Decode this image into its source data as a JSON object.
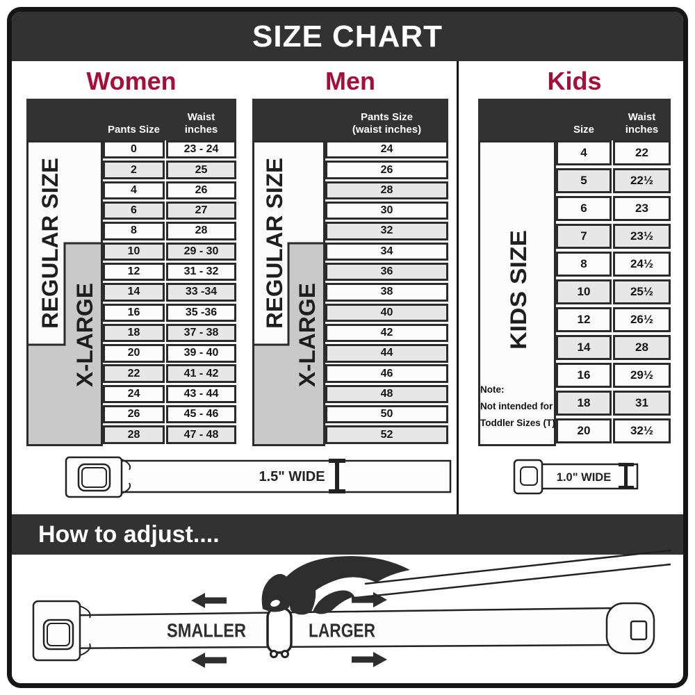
{
  "title": "SIZE CHART",
  "colors": {
    "accent": "#A60D38",
    "dark_band": "#323232",
    "label_gray": "#C9C9C9",
    "row_alt": "#E7E7E7",
    "border": "#2B2B2B"
  },
  "women": {
    "heading": "Women",
    "col_pants": "Pants Size",
    "col_waist": "Waist\ninches",
    "regular_label": "REGULAR SIZE",
    "xlarge_label": "X-LARGE",
    "rows": [
      [
        "0",
        "23 - 24"
      ],
      [
        "2",
        "25"
      ],
      [
        "4",
        "26"
      ],
      [
        "6",
        "27"
      ],
      [
        "8",
        "28"
      ],
      [
        "10",
        "29 - 30"
      ],
      [
        "12",
        "31 - 32"
      ],
      [
        "14",
        "33 -34"
      ],
      [
        "16",
        "35 -36"
      ],
      [
        "18",
        "37 - 38"
      ],
      [
        "20",
        "39 - 40"
      ],
      [
        "22",
        "41 - 42"
      ],
      [
        "24",
        "43 - 44"
      ],
      [
        "26",
        "45 - 46"
      ],
      [
        "28",
        "47 - 48"
      ]
    ]
  },
  "men": {
    "heading": "Men",
    "col_pants": "Pants Size\n(waist inches)",
    "regular_label": "REGULAR SIZE",
    "xlarge_label": "X-LARGE",
    "sizes": [
      "24",
      "26",
      "28",
      "30",
      "32",
      "34",
      "36",
      "38",
      "40",
      "42",
      "44",
      "46",
      "48",
      "50",
      "52"
    ]
  },
  "kids": {
    "heading": "Kids",
    "col_size": "Size",
    "col_waist": "Waist\ninches",
    "side_label": "KIDS SIZE",
    "note": [
      "Note:",
      "Not intended for",
      "Toddler Sizes (T)"
    ],
    "rows": [
      [
        "4",
        "22"
      ],
      [
        "5",
        "22½"
      ],
      [
        "6",
        "23"
      ],
      [
        "7",
        "23½"
      ],
      [
        "8",
        "24½"
      ],
      [
        "10",
        "25½"
      ],
      [
        "12",
        "26½"
      ],
      [
        "14",
        "28"
      ],
      [
        "16",
        "29½"
      ],
      [
        "18",
        "31"
      ],
      [
        "20",
        "32½"
      ]
    ]
  },
  "belts": {
    "adult": "1.5\" WIDE",
    "kids": "1.0\" WIDE"
  },
  "adjust": {
    "heading": "How to adjust....",
    "smaller": "SMALLER",
    "larger": "LARGER"
  },
  "chart_data": [
    {
      "type": "table",
      "title": "Women",
      "columns": [
        "Pants Size",
        "Waist inches"
      ],
      "rows": [
        [
          "0",
          "23 - 24"
        ],
        [
          "2",
          "25"
        ],
        [
          "4",
          "26"
        ],
        [
          "6",
          "27"
        ],
        [
          "8",
          "28"
        ],
        [
          "10",
          "29 - 30"
        ],
        [
          "12",
          "31 - 32"
        ],
        [
          "14",
          "33 -34"
        ],
        [
          "16",
          "35 -36"
        ],
        [
          "18",
          "37 - 38"
        ],
        [
          "20",
          "39 - 40"
        ],
        [
          "22",
          "41 - 42"
        ],
        [
          "24",
          "43 - 44"
        ],
        [
          "26",
          "45 - 46"
        ],
        [
          "28",
          "47 - 48"
        ]
      ],
      "regular_size_range": [
        "0",
        "18"
      ],
      "x_large_range": [
        "10",
        "28"
      ],
      "belt_width": "1.5\" WIDE"
    },
    {
      "type": "table",
      "title": "Men",
      "columns": [
        "Pants Size (waist inches)"
      ],
      "rows": [
        [
          "24"
        ],
        [
          "26"
        ],
        [
          "28"
        ],
        [
          "30"
        ],
        [
          "32"
        ],
        [
          "34"
        ],
        [
          "36"
        ],
        [
          "38"
        ],
        [
          "40"
        ],
        [
          "42"
        ],
        [
          "44"
        ],
        [
          "46"
        ],
        [
          "48"
        ],
        [
          "50"
        ],
        [
          "52"
        ]
      ],
      "regular_size_range": [
        "24",
        "42"
      ],
      "x_large_range": [
        "34",
        "52"
      ],
      "belt_width": "1.5\" WIDE"
    },
    {
      "type": "table",
      "title": "Kids",
      "columns": [
        "Size",
        "Waist inches"
      ],
      "rows": [
        [
          "4",
          "22"
        ],
        [
          "5",
          "22½"
        ],
        [
          "6",
          "23"
        ],
        [
          "7",
          "23½"
        ],
        [
          "8",
          "24½"
        ],
        [
          "10",
          "25½"
        ],
        [
          "12",
          "26½"
        ],
        [
          "14",
          "28"
        ],
        [
          "16",
          "29½"
        ],
        [
          "18",
          "31"
        ],
        [
          "20",
          "32½"
        ]
      ],
      "group_label": "KIDS SIZE",
      "note": "Note: Not intended for Toddler Sizes (T)",
      "belt_width": "1.0\" WIDE"
    }
  ]
}
